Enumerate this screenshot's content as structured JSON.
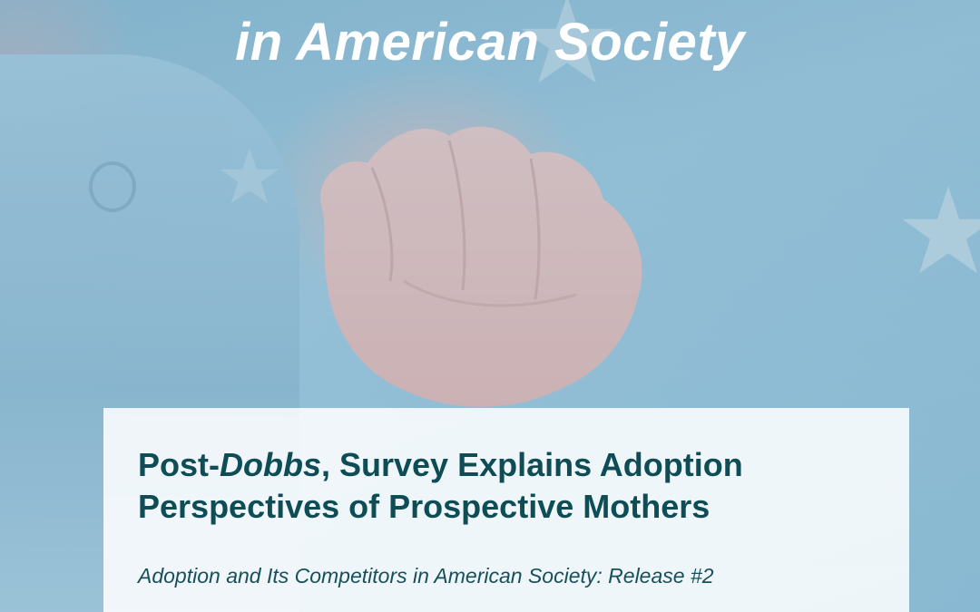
{
  "hero": {
    "headline": "in American Society",
    "image_subject": "newborn-fist-photo"
  },
  "card": {
    "title_prefix": "Post-",
    "title_emphasis": "Dobbs",
    "title_rest": ", Survey Explains Adoption Perspectives of Prospective Mothers",
    "subtitle": "Adoption and Its Competitors in American Society: Release #2"
  },
  "colors": {
    "title": "#0e4c56",
    "background_blue": "#9cc3d8",
    "headline": "#ffffff"
  }
}
